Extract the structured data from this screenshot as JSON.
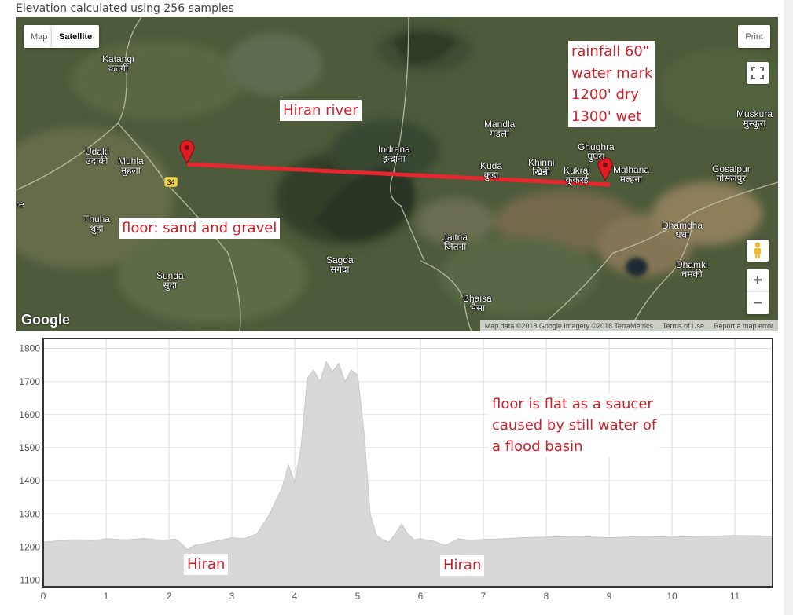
{
  "header": {
    "text": "Elevation calculated using 256 samples"
  },
  "map": {
    "type_buttons": {
      "map": "Map",
      "satellite": "Satellite",
      "active": "satellite"
    },
    "print_label": "Print",
    "zoom_in": "+",
    "zoom_out": "−",
    "google_logo": "Google",
    "attribution": {
      "data": "Map data ©2018 Google Imagery ©2018 TerraMetrics",
      "terms": "Terms of Use",
      "report": "Report a map error"
    },
    "highway_shield": "34",
    "places": {
      "katangi": "Katangi\nकटंगी",
      "udaki": "Udaki\nउदाकी",
      "muhla": "Muhla\nमुहला",
      "thuha": "Thuha\nथुहा",
      "sunda": "Sunda\nसुंदा",
      "sagda": "Sagda\nसगदा",
      "indrana": "Indrana\nइन्द्राना",
      "jaitna": "Jaitna\nजितना",
      "bhaisa": "Bhaisa\nभैसा",
      "mandla": "Mandla\nमडला",
      "kuda": "Kuda\nकुडा",
      "khinni": "Khinni\nखिन्नी",
      "kukrai": "Kukrai\nकुकरई",
      "ghughra": "Ghughra\nघुघरा",
      "malhana": "Malhana\nमल्हना",
      "muskura": "Muskura\nमुस्कुरा",
      "gosalpur": "Gosalpur\nगोसलपुर",
      "dhamdha": "Dhamdha\nधधा",
      "dhamki": "Dhamki\nधमकी",
      "edge": "re"
    },
    "annotations": {
      "river": "Hiran river",
      "floor": "floor: sand and gravel",
      "rainfall": [
        "rainfall 60\"",
        "water mark",
        "1200' dry",
        "1300' wet"
      ]
    },
    "colors": {
      "path": "#e8262f",
      "marker": "#e11b22"
    }
  },
  "chart_data": {
    "type": "area",
    "x": [
      0,
      0.2,
      0.5,
      0.8,
      1.0,
      1.3,
      1.6,
      1.9,
      2.1,
      2.2,
      2.3,
      2.4,
      2.6,
      2.8,
      3.0,
      3.2,
      3.4,
      3.6,
      3.8,
      3.9,
      4.0,
      4.1,
      4.2,
      4.3,
      4.4,
      4.5,
      4.6,
      4.7,
      4.8,
      4.9,
      5.0,
      5.1,
      5.2,
      5.3,
      5.4,
      5.5,
      5.6,
      5.7,
      5.8,
      5.9,
      6.0,
      6.2,
      6.4,
      6.6,
      6.8,
      7.0,
      7.3,
      7.6,
      8.0,
      8.5,
      9.0,
      9.5,
      10.0,
      10.5,
      11.0,
      11.6
    ],
    "y": [
      1215,
      1218,
      1222,
      1220,
      1225,
      1222,
      1226,
      1220,
      1224,
      1210,
      1192,
      1205,
      1212,
      1220,
      1228,
      1225,
      1240,
      1300,
      1380,
      1448,
      1395,
      1500,
      1710,
      1735,
      1700,
      1760,
      1730,
      1755,
      1700,
      1735,
      1720,
      1550,
      1300,
      1235,
      1222,
      1215,
      1240,
      1270,
      1240,
      1222,
      1225,
      1218,
      1205,
      1225,
      1220,
      1223,
      1225,
      1228,
      1230,
      1232,
      1228,
      1232,
      1230,
      1232,
      1235,
      1233
    ],
    "xlim": [
      0,
      11.6
    ],
    "ylim": [
      1080,
      1830
    ],
    "xticks": [
      0,
      1,
      2,
      3,
      4,
      5,
      6,
      7,
      8,
      9,
      10,
      11
    ],
    "yticks": [
      1100,
      1200,
      1300,
      1400,
      1500,
      1600,
      1700,
      1800
    ],
    "grid": true,
    "fill_color": "#d8d8d8",
    "annotations": {
      "hiran_left": "Hiran",
      "hiran_right": "Hiran",
      "floor_note": [
        "floor is flat as a saucer",
        "caused by still water of",
        "a flood basin"
      ]
    }
  }
}
